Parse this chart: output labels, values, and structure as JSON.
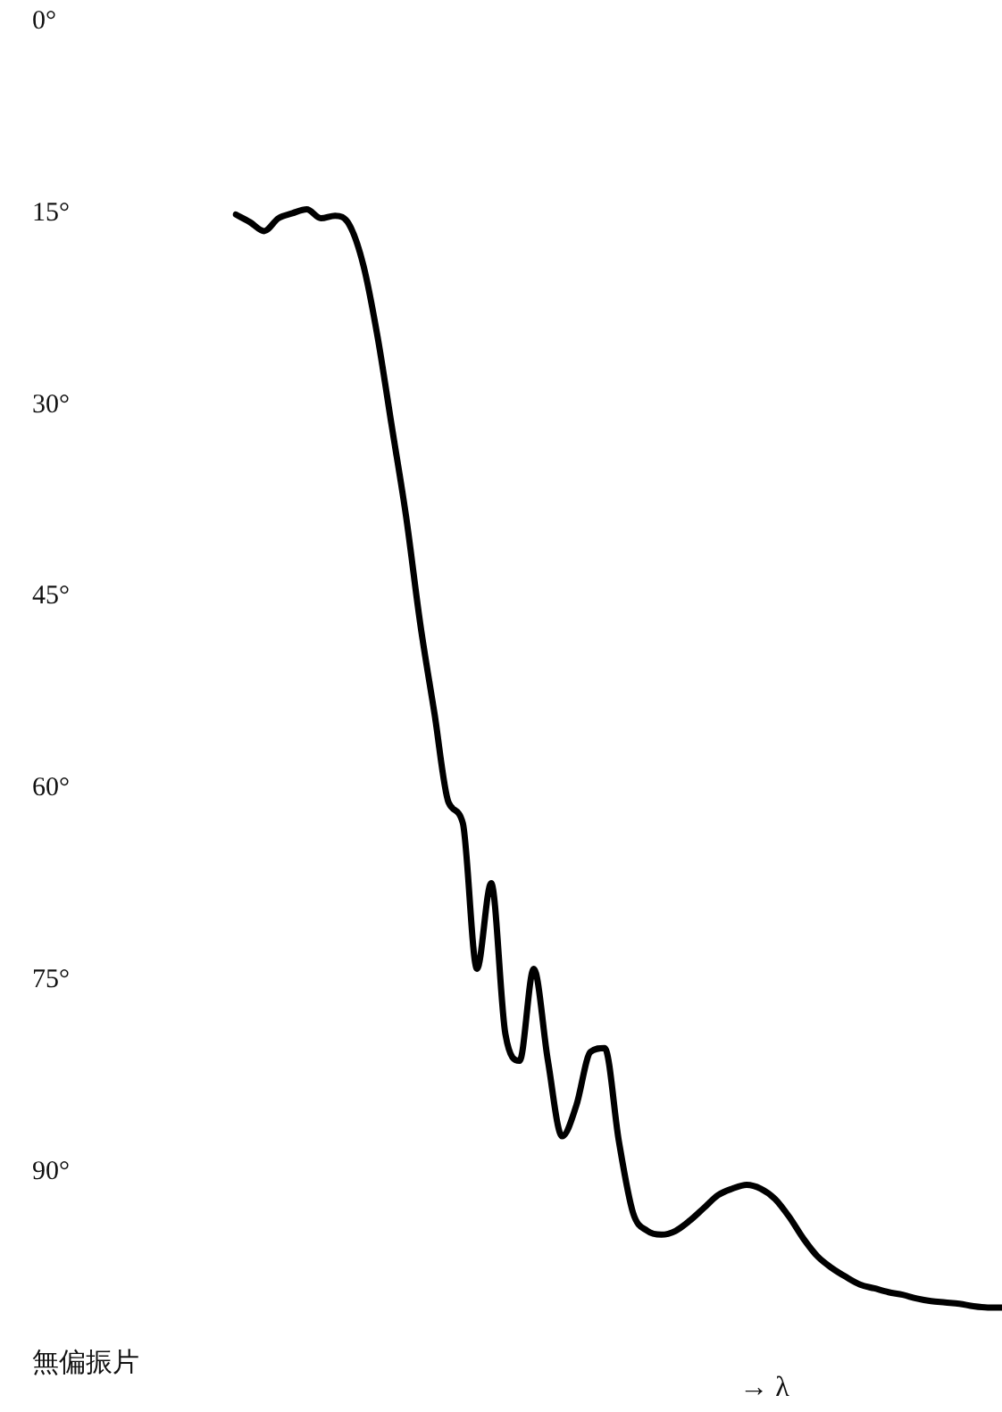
{
  "chart_data": {
    "type": "line",
    "xlabel": "→ λ",
    "categories": [
      null,
      null,
      null,
      null,
      null,
      null,
      null,
      null,
      null,
      null,
      null,
      null,
      null,
      null,
      null,
      null,
      null,
      null,
      null,
      null,
      null,
      null,
      null,
      null,
      null,
      null,
      null,
      null,
      null,
      null,
      null,
      null,
      null,
      null,
      null,
      null,
      null,
      null,
      null,
      null,
      null,
      null,
      null,
      null,
      null,
      null,
      null,
      null,
      null,
      null,
      null,
      null,
      null,
      null,
      null
    ],
    "series": [
      {
        "color": "#000000",
        "values": [
          15.1,
          15.7,
          16.4,
          15.4,
          15.0,
          14.7,
          15.4,
          15.2,
          15.9,
          19.1,
          24.7,
          31.7,
          38.7,
          47.1,
          54.1,
          61.1,
          62.7,
          74.1,
          67.4,
          79.2,
          81.3,
          74.1,
          81.3,
          87.2,
          84.8,
          80.6,
          80.3,
          87.6,
          93.2,
          94.6,
          94.9,
          94.6,
          93.8,
          92.8,
          91.8,
          91.3,
          91.0,
          91.3,
          92.1,
          93.5,
          95.2,
          96.6,
          97.5,
          98.2,
          98.8,
          99.1,
          99.4,
          99.6,
          99.9,
          100.1,
          100.2,
          100.3,
          100.5,
          100.6,
          100.6
        ]
      }
    ],
    "ylim": [
      105,
      0
    ],
    "yticks": [
      {
        "value": 0,
        "label": "0°"
      },
      {
        "value": 15,
        "label": "15°"
      },
      {
        "value": 30,
        "label": "30°"
      },
      {
        "value": 45,
        "label": "45°"
      },
      {
        "value": 60,
        "label": "60°"
      },
      {
        "value": 75,
        "label": "75°"
      },
      {
        "value": 90,
        "label": "90°"
      },
      {
        "value": 105,
        "label": "無偏振片"
      }
    ],
    "tick_labels": "y",
    "grid": false,
    "legend": false,
    "marker": "none",
    "line_style": "solid"
  }
}
